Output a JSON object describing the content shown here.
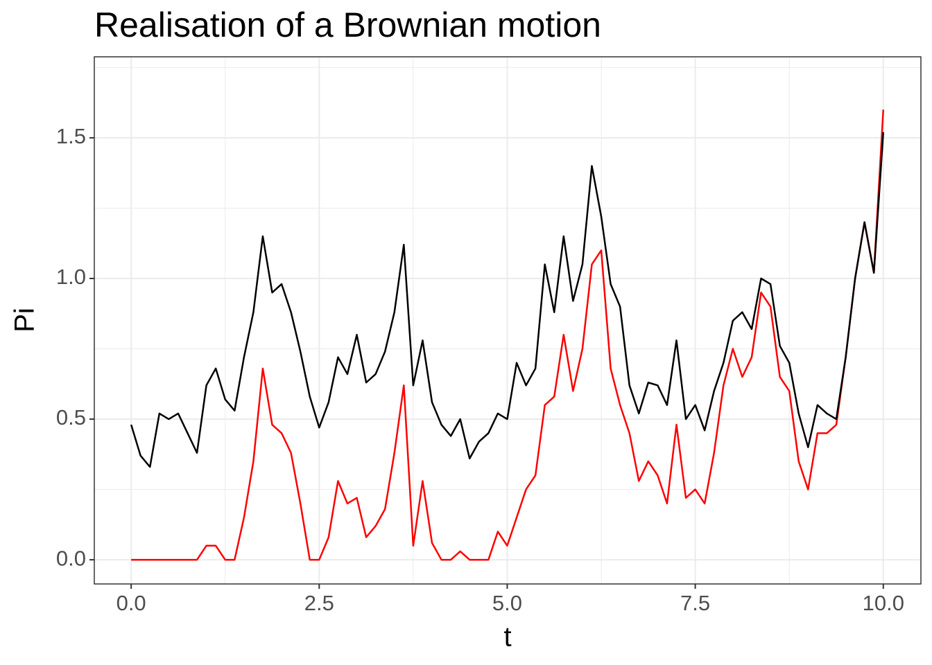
{
  "chart_data": {
    "type": "line",
    "title": "Realisation of a Brownian motion",
    "x_label": "t",
    "y_label": "Pi",
    "x": [
      0,
      0.125,
      0.25,
      0.375,
      0.5,
      0.625,
      0.75,
      0.875,
      1,
      1.125,
      1.25,
      1.375,
      1.5,
      1.625,
      1.75,
      1.875,
      2,
      2.125,
      2.25,
      2.375,
      2.5,
      2.625,
      2.75,
      2.875,
      3,
      3.125,
      3.25,
      3.375,
      3.5,
      3.625,
      3.75,
      3.875,
      4,
      4.125,
      4.25,
      4.375,
      4.5,
      4.625,
      4.75,
      4.875,
      5,
      5.125,
      5.25,
      5.375,
      5.5,
      5.625,
      5.75,
      5.875,
      6,
      6.125,
      6.25,
      6.375,
      6.5,
      6.625,
      6.75,
      6.875,
      7,
      7.125,
      7.25,
      7.375,
      7.5,
      7.625,
      7.75,
      7.875,
      8,
      8.125,
      8.25,
      8.375,
      8.5,
      8.625,
      8.75,
      8.875,
      9,
      9.125,
      9.25,
      9.375,
      9.5,
      9.625,
      9.75,
      9.875,
      10
    ],
    "series": [
      {
        "color": "#ff0000",
        "values": [
          0,
          0,
          0,
          0,
          0,
          0,
          0,
          0,
          0.05,
          0.05,
          0,
          0,
          0.15,
          0.35,
          0.68,
          0.48,
          0.45,
          0.38,
          0.2,
          0,
          0,
          0.08,
          0.28,
          0.2,
          0.22,
          0.08,
          0.12,
          0.18,
          0.38,
          0.62,
          0.05,
          0.28,
          0.06,
          0,
          0,
          0.03,
          0,
          0,
          0,
          0.1,
          0.05,
          0.15,
          0.25,
          0.3,
          0.55,
          0.58,
          0.8,
          0.6,
          0.75,
          1.05,
          1.1,
          0.68,
          0.55,
          0.45,
          0.28,
          0.35,
          0.3,
          0.2,
          0.48,
          0.22,
          0.25,
          0.2,
          0.38,
          0.62,
          0.75,
          0.65,
          0.72,
          0.95,
          0.9,
          0.65,
          0.6,
          0.35,
          0.25,
          0.45,
          0.45,
          0.48,
          0.72,
          1.0,
          1.2,
          1.02,
          1.6
        ]
      },
      {
        "color": "#000000",
        "values": [
          0.48,
          0.37,
          0.33,
          0.52,
          0.5,
          0.52,
          0.45,
          0.38,
          0.62,
          0.68,
          0.57,
          0.53,
          0.72,
          0.88,
          1.15,
          0.95,
          0.98,
          0.88,
          0.74,
          0.58,
          0.47,
          0.56,
          0.72,
          0.66,
          0.8,
          0.63,
          0.66,
          0.74,
          0.88,
          1.12,
          0.62,
          0.78,
          0.56,
          0.48,
          0.44,
          0.5,
          0.36,
          0.42,
          0.45,
          0.52,
          0.5,
          0.7,
          0.62,
          0.68,
          1.05,
          0.88,
          1.15,
          0.92,
          1.05,
          1.4,
          1.22,
          0.98,
          0.9,
          0.62,
          0.52,
          0.63,
          0.62,
          0.55,
          0.78,
          0.5,
          0.55,
          0.46,
          0.6,
          0.7,
          0.85,
          0.88,
          0.82,
          1.0,
          0.98,
          0.76,
          0.7,
          0.52,
          0.4,
          0.55,
          0.52,
          0.5,
          0.72,
          1.0,
          1.2,
          1.02,
          1.52
        ]
      }
    ],
    "xlim": [
      -0.49,
      10.5
    ],
    "ylim": [
      -0.086,
      1.788
    ],
    "xticks": [
      {
        "value": 0,
        "label": "0.0"
      },
      {
        "value": 2.5,
        "label": "2.5"
      },
      {
        "value": 5,
        "label": "5.0"
      },
      {
        "value": 7.5,
        "label": "7.5"
      },
      {
        "value": 10,
        "label": "10.0"
      }
    ],
    "yticks": [
      {
        "value": 0,
        "label": "0.0"
      },
      {
        "value": 0.5,
        "label": "0.5"
      },
      {
        "value": 1,
        "label": "1.0"
      },
      {
        "value": 1.5,
        "label": "1.5"
      }
    ],
    "x_minor_ticks": [
      1.25,
      3.75,
      6.25,
      8.75
    ],
    "y_minor_ticks": [
      0.25,
      0.75,
      1.25,
      1.75
    ],
    "grid": true
  }
}
